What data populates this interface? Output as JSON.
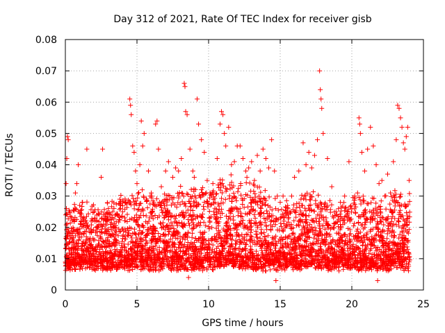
{
  "chart_data": {
    "type": "scatter",
    "title": "Day 312 of 2021, Rate Of TEC Index for receiver gisb",
    "xlabel": "GPS time / hours",
    "ylabel": "ROTI / TECUs",
    "xlim": [
      0,
      25
    ],
    "ylim": [
      0,
      0.08
    ],
    "xticks": [
      "0",
      "5",
      "10",
      "15",
      "20",
      "25"
    ],
    "yticks": [
      "0",
      "0.01",
      "0.02",
      "0.03",
      "0.04",
      "0.05",
      "0.06",
      "0.07",
      "0.08"
    ],
    "grid": true,
    "marker": "+",
    "color": "#ff0000",
    "series": [
      {
        "points": [
          [
            0.05,
            0.034
          ],
          [
            0.1,
            0.042
          ],
          [
            0.15,
            0.049
          ],
          [
            0.2,
            0.048
          ],
          [
            0.3,
            0.025
          ],
          [
            0.5,
            0.018
          ],
          [
            0.6,
            0.022
          ],
          [
            0.7,
            0.031
          ],
          [
            0.8,
            0.034
          ],
          [
            0.9,
            0.04
          ],
          [
            1.0,
            0.027
          ],
          [
            1.2,
            0.028
          ],
          [
            1.5,
            0.045
          ],
          [
            1.8,
            0.022
          ],
          [
            2.0,
            0.025
          ],
          [
            2.3,
            0.02
          ],
          [
            2.5,
            0.036
          ],
          [
            2.6,
            0.045
          ],
          [
            2.8,
            0.023
          ],
          [
            3.0,
            0.026
          ],
          [
            3.2,
            0.02
          ],
          [
            3.5,
            0.024
          ],
          [
            3.8,
            0.029
          ],
          [
            4.0,
            0.025
          ],
          [
            4.2,
            0.028
          ],
          [
            4.5,
            0.061
          ],
          [
            4.55,
            0.059
          ],
          [
            4.6,
            0.056
          ],
          [
            4.7,
            0.046
          ],
          [
            4.8,
            0.044
          ],
          [
            4.9,
            0.038
          ],
          [
            5.0,
            0.034
          ],
          [
            5.2,
            0.04
          ],
          [
            5.3,
            0.054
          ],
          [
            5.4,
            0.046
          ],
          [
            5.5,
            0.05
          ],
          [
            5.8,
            0.038
          ],
          [
            6.0,
            0.031
          ],
          [
            6.3,
            0.053
          ],
          [
            6.4,
            0.054
          ],
          [
            6.5,
            0.045
          ],
          [
            6.7,
            0.033
          ],
          [
            7.0,
            0.038
          ],
          [
            7.2,
            0.041
          ],
          [
            7.5,
            0.036
          ],
          [
            7.7,
            0.039
          ],
          [
            7.9,
            0.038
          ],
          [
            8.1,
            0.042
          ],
          [
            8.3,
            0.066
          ],
          [
            8.35,
            0.065
          ],
          [
            8.4,
            0.057
          ],
          [
            8.5,
            0.056
          ],
          [
            8.7,
            0.045
          ],
          [
            8.9,
            0.038
          ],
          [
            9.0,
            0.036
          ],
          [
            9.2,
            0.061
          ],
          [
            9.3,
            0.053
          ],
          [
            9.5,
            0.048
          ],
          [
            9.7,
            0.044
          ],
          [
            9.9,
            0.035
          ],
          [
            10.1,
            0.031
          ],
          [
            10.3,
            0.034
          ],
          [
            10.6,
            0.042
          ],
          [
            10.8,
            0.053
          ],
          [
            10.9,
            0.057
          ],
          [
            11.0,
            0.056
          ],
          [
            11.1,
            0.05
          ],
          [
            11.2,
            0.046
          ],
          [
            11.4,
            0.052
          ],
          [
            11.6,
            0.04
          ],
          [
            11.8,
            0.041
          ],
          [
            12.0,
            0.046
          ],
          [
            12.2,
            0.046
          ],
          [
            12.4,
            0.042
          ],
          [
            12.6,
            0.038
          ],
          [
            12.8,
            0.039
          ],
          [
            13.0,
            0.041
          ],
          [
            13.2,
            0.035
          ],
          [
            13.4,
            0.043
          ],
          [
            13.6,
            0.038
          ],
          [
            13.8,
            0.045
          ],
          [
            14.0,
            0.042
          ],
          [
            14.2,
            0.039
          ],
          [
            14.4,
            0.048
          ],
          [
            14.6,
            0.038
          ],
          [
            14.8,
            0.03
          ],
          [
            15.0,
            0.028
          ],
          [
            15.2,
            0.03
          ],
          [
            15.5,
            0.025
          ],
          [
            15.8,
            0.03
          ],
          [
            16.0,
            0.036
          ],
          [
            16.3,
            0.038
          ],
          [
            16.6,
            0.047
          ],
          [
            16.8,
            0.04
          ],
          [
            17.0,
            0.044
          ],
          [
            17.2,
            0.039
          ],
          [
            17.4,
            0.043
          ],
          [
            17.6,
            0.048
          ],
          [
            17.75,
            0.07
          ],
          [
            17.8,
            0.064
          ],
          [
            17.85,
            0.061
          ],
          [
            17.9,
            0.058
          ],
          [
            18.0,
            0.05
          ],
          [
            18.3,
            0.042
          ],
          [
            18.6,
            0.033
          ],
          [
            18.9,
            0.025
          ],
          [
            19.2,
            0.028
          ],
          [
            19.5,
            0.03
          ],
          [
            19.8,
            0.041
          ],
          [
            20.0,
            0.026
          ],
          [
            20.2,
            0.03
          ],
          [
            20.4,
            0.031
          ],
          [
            20.5,
            0.055
          ],
          [
            20.55,
            0.053
          ],
          [
            20.6,
            0.05
          ],
          [
            20.7,
            0.044
          ],
          [
            20.9,
            0.038
          ],
          [
            21.1,
            0.045
          ],
          [
            21.3,
            0.052
          ],
          [
            21.5,
            0.046
          ],
          [
            21.7,
            0.04
          ],
          [
            21.9,
            0.034
          ],
          [
            22.1,
            0.035
          ],
          [
            22.3,
            0.03
          ],
          [
            22.5,
            0.037
          ],
          [
            22.7,
            0.031
          ],
          [
            22.9,
            0.041
          ],
          [
            23.1,
            0.048
          ],
          [
            23.2,
            0.059
          ],
          [
            23.3,
            0.058
          ],
          [
            23.4,
            0.055
          ],
          [
            23.5,
            0.052
          ],
          [
            23.6,
            0.047
          ],
          [
            23.7,
            0.045
          ],
          [
            23.8,
            0.049
          ],
          [
            23.9,
            0.052
          ],
          [
            24.0,
            0.035
          ],
          [
            0.3,
            0.012
          ],
          [
            0.6,
            0.008
          ],
          [
            0.9,
            0.014
          ],
          [
            1.3,
            0.01
          ],
          [
            1.7,
            0.016
          ],
          [
            2.1,
            0.009
          ],
          [
            2.4,
            0.013
          ],
          [
            2.9,
            0.007
          ],
          [
            3.3,
            0.011
          ],
          [
            3.6,
            0.015
          ],
          [
            3.9,
            0.009
          ],
          [
            4.3,
            0.012
          ],
          [
            4.7,
            0.018
          ],
          [
            5.1,
            0.014
          ],
          [
            5.6,
            0.01
          ],
          [
            6.1,
            0.016
          ],
          [
            6.6,
            0.012
          ],
          [
            7.1,
            0.009
          ],
          [
            7.6,
            0.015
          ],
          [
            8.0,
            0.011
          ],
          [
            8.6,
            0.004
          ],
          [
            9.1,
            0.013
          ],
          [
            9.6,
            0.017
          ],
          [
            10.2,
            0.012
          ],
          [
            10.7,
            0.019
          ],
          [
            11.3,
            0.015
          ],
          [
            11.9,
            0.021
          ],
          [
            12.5,
            0.016
          ],
          [
            13.1,
            0.011
          ],
          [
            13.7,
            0.018
          ],
          [
            14.3,
            0.013
          ],
          [
            14.7,
            0.003
          ],
          [
            15.3,
            0.012
          ],
          [
            15.9,
            0.015
          ],
          [
            16.4,
            0.011
          ],
          [
            16.9,
            0.017
          ],
          [
            17.3,
            0.013
          ],
          [
            18.1,
            0.016
          ],
          [
            18.7,
            0.01
          ],
          [
            19.3,
            0.013
          ],
          [
            19.9,
            0.008
          ],
          [
            20.3,
            0.014
          ],
          [
            20.8,
            0.011
          ],
          [
            21.4,
            0.017
          ],
          [
            21.8,
            0.003
          ],
          [
            22.2,
            0.012
          ],
          [
            22.8,
            0.015
          ],
          [
            23.0,
            0.01
          ],
          [
            23.6,
            0.013
          ],
          [
            24.0,
            0.009
          ]
        ]
      }
    ],
    "dense_band": [
      [
        0,
        0.006,
        0.024
      ],
      [
        1,
        0.006,
        0.026
      ],
      [
        2,
        0.006,
        0.024
      ],
      [
        3,
        0.006,
        0.025
      ],
      [
        4,
        0.006,
        0.028
      ],
      [
        5,
        0.006,
        0.03
      ],
      [
        6,
        0.006,
        0.027
      ],
      [
        7,
        0.006,
        0.028
      ],
      [
        8,
        0.006,
        0.031
      ],
      [
        9,
        0.006,
        0.03
      ],
      [
        10,
        0.006,
        0.031
      ],
      [
        11,
        0.007,
        0.033
      ],
      [
        12,
        0.007,
        0.034
      ],
      [
        13,
        0.006,
        0.032
      ],
      [
        14,
        0.006,
        0.03
      ],
      [
        15,
        0.006,
        0.024
      ],
      [
        16,
        0.006,
        0.026
      ],
      [
        17,
        0.007,
        0.03
      ],
      [
        18,
        0.006,
        0.028
      ],
      [
        19,
        0.006,
        0.024
      ],
      [
        20,
        0.006,
        0.027
      ],
      [
        21,
        0.006,
        0.028
      ],
      [
        22,
        0.006,
        0.026
      ],
      [
        23,
        0.006,
        0.03
      ],
      [
        24,
        0.006,
        0.028
      ]
    ]
  }
}
